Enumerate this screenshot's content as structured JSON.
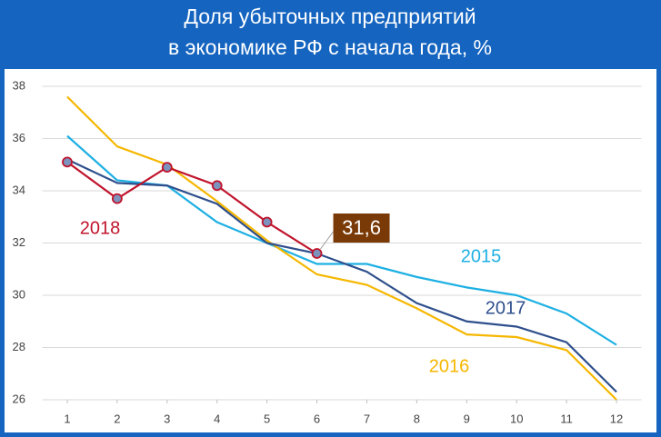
{
  "chart_data": {
    "type": "line",
    "title": [
      "Доля убыточных предприятий",
      "в экономике РФ с начала года, %"
    ],
    "x": [
      1,
      2,
      3,
      4,
      5,
      6,
      7,
      8,
      9,
      10,
      11,
      12
    ],
    "xlim": [
      0.5,
      12.5
    ],
    "xticks": [
      1,
      2,
      3,
      4,
      5,
      6,
      7,
      8,
      9,
      10,
      11,
      12
    ],
    "ylim": [
      26,
      38
    ],
    "yticks": [
      26,
      28,
      30,
      32,
      34,
      36,
      38
    ],
    "grid": true,
    "series": [
      {
        "name": "2015",
        "color": "#1eb0e3",
        "values": [
          36.1,
          34.4,
          34.2,
          32.8,
          32.0,
          31.2,
          31.2,
          30.7,
          30.3,
          30.0,
          29.3,
          28.1
        ]
      },
      {
        "name": "2016",
        "color": "#f5b700",
        "values": [
          37.6,
          35.7,
          35.0,
          33.6,
          32.1,
          30.8,
          30.4,
          29.5,
          28.5,
          28.4,
          27.9,
          26.0
        ]
      },
      {
        "name": "2017",
        "color": "#2f4f8c",
        "values": [
          35.2,
          34.3,
          34.2,
          33.5,
          32.0,
          31.6,
          30.9,
          29.7,
          29.0,
          28.8,
          28.2,
          26.3
        ]
      },
      {
        "name": "2018",
        "color": "#c0142c",
        "markers": true,
        "values": [
          35.1,
          33.7,
          34.9,
          34.2,
          32.8,
          31.6,
          null,
          null,
          null,
          null,
          null,
          null
        ],
        "value_labels": [
          null,
          null,
          null,
          null,
          null,
          "31,6",
          null,
          null,
          null,
          null,
          null,
          null
        ]
      }
    ]
  }
}
